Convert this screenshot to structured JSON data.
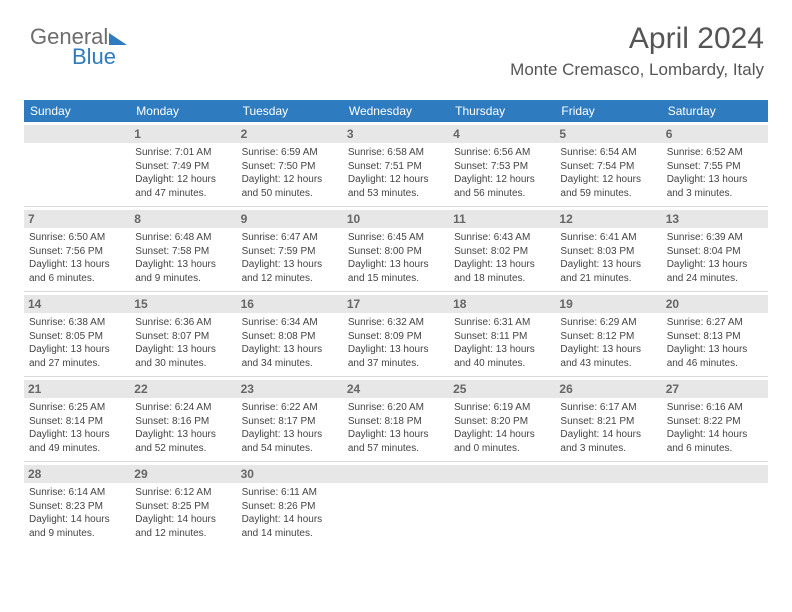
{
  "logo": {
    "part1": "General",
    "part2": "Blue"
  },
  "title": "April 2024",
  "location": "Monte Cremasco, Lombardy, Italy",
  "weekdays": [
    "Sunday",
    "Monday",
    "Tuesday",
    "Wednesday",
    "Thursday",
    "Friday",
    "Saturday"
  ],
  "colors": {
    "header_bar": "#2e7bc0",
    "daynum_bg": "#e7e7e7",
    "text": "#444444",
    "title": "#555555"
  },
  "first_weekday_index": 1,
  "days": [
    {
      "n": 1,
      "sunrise": "7:01 AM",
      "sunset": "7:49 PM",
      "daylight": "12 hours and 47 minutes."
    },
    {
      "n": 2,
      "sunrise": "6:59 AM",
      "sunset": "7:50 PM",
      "daylight": "12 hours and 50 minutes."
    },
    {
      "n": 3,
      "sunrise": "6:58 AM",
      "sunset": "7:51 PM",
      "daylight": "12 hours and 53 minutes."
    },
    {
      "n": 4,
      "sunrise": "6:56 AM",
      "sunset": "7:53 PM",
      "daylight": "12 hours and 56 minutes."
    },
    {
      "n": 5,
      "sunrise": "6:54 AM",
      "sunset": "7:54 PM",
      "daylight": "12 hours and 59 minutes."
    },
    {
      "n": 6,
      "sunrise": "6:52 AM",
      "sunset": "7:55 PM",
      "daylight": "13 hours and 3 minutes."
    },
    {
      "n": 7,
      "sunrise": "6:50 AM",
      "sunset": "7:56 PM",
      "daylight": "13 hours and 6 minutes."
    },
    {
      "n": 8,
      "sunrise": "6:48 AM",
      "sunset": "7:58 PM",
      "daylight": "13 hours and 9 minutes."
    },
    {
      "n": 9,
      "sunrise": "6:47 AM",
      "sunset": "7:59 PM",
      "daylight": "13 hours and 12 minutes."
    },
    {
      "n": 10,
      "sunrise": "6:45 AM",
      "sunset": "8:00 PM",
      "daylight": "13 hours and 15 minutes."
    },
    {
      "n": 11,
      "sunrise": "6:43 AM",
      "sunset": "8:02 PM",
      "daylight": "13 hours and 18 minutes."
    },
    {
      "n": 12,
      "sunrise": "6:41 AM",
      "sunset": "8:03 PM",
      "daylight": "13 hours and 21 minutes."
    },
    {
      "n": 13,
      "sunrise": "6:39 AM",
      "sunset": "8:04 PM",
      "daylight": "13 hours and 24 minutes."
    },
    {
      "n": 14,
      "sunrise": "6:38 AM",
      "sunset": "8:05 PM",
      "daylight": "13 hours and 27 minutes."
    },
    {
      "n": 15,
      "sunrise": "6:36 AM",
      "sunset": "8:07 PM",
      "daylight": "13 hours and 30 minutes."
    },
    {
      "n": 16,
      "sunrise": "6:34 AM",
      "sunset": "8:08 PM",
      "daylight": "13 hours and 34 minutes."
    },
    {
      "n": 17,
      "sunrise": "6:32 AM",
      "sunset": "8:09 PM",
      "daylight": "13 hours and 37 minutes."
    },
    {
      "n": 18,
      "sunrise": "6:31 AM",
      "sunset": "8:11 PM",
      "daylight": "13 hours and 40 minutes."
    },
    {
      "n": 19,
      "sunrise": "6:29 AM",
      "sunset": "8:12 PM",
      "daylight": "13 hours and 43 minutes."
    },
    {
      "n": 20,
      "sunrise": "6:27 AM",
      "sunset": "8:13 PM",
      "daylight": "13 hours and 46 minutes."
    },
    {
      "n": 21,
      "sunrise": "6:25 AM",
      "sunset": "8:14 PM",
      "daylight": "13 hours and 49 minutes."
    },
    {
      "n": 22,
      "sunrise": "6:24 AM",
      "sunset": "8:16 PM",
      "daylight": "13 hours and 52 minutes."
    },
    {
      "n": 23,
      "sunrise": "6:22 AM",
      "sunset": "8:17 PM",
      "daylight": "13 hours and 54 minutes."
    },
    {
      "n": 24,
      "sunrise": "6:20 AM",
      "sunset": "8:18 PM",
      "daylight": "13 hours and 57 minutes."
    },
    {
      "n": 25,
      "sunrise": "6:19 AM",
      "sunset": "8:20 PM",
      "daylight": "14 hours and 0 minutes."
    },
    {
      "n": 26,
      "sunrise": "6:17 AM",
      "sunset": "8:21 PM",
      "daylight": "14 hours and 3 minutes."
    },
    {
      "n": 27,
      "sunrise": "6:16 AM",
      "sunset": "8:22 PM",
      "daylight": "14 hours and 6 minutes."
    },
    {
      "n": 28,
      "sunrise": "6:14 AM",
      "sunset": "8:23 PM",
      "daylight": "14 hours and 9 minutes."
    },
    {
      "n": 29,
      "sunrise": "6:12 AM",
      "sunset": "8:25 PM",
      "daylight": "14 hours and 12 minutes."
    },
    {
      "n": 30,
      "sunrise": "6:11 AM",
      "sunset": "8:26 PM",
      "daylight": "14 hours and 14 minutes."
    }
  ],
  "labels": {
    "sunrise": "Sunrise:",
    "sunset": "Sunset:",
    "daylight": "Daylight:"
  }
}
